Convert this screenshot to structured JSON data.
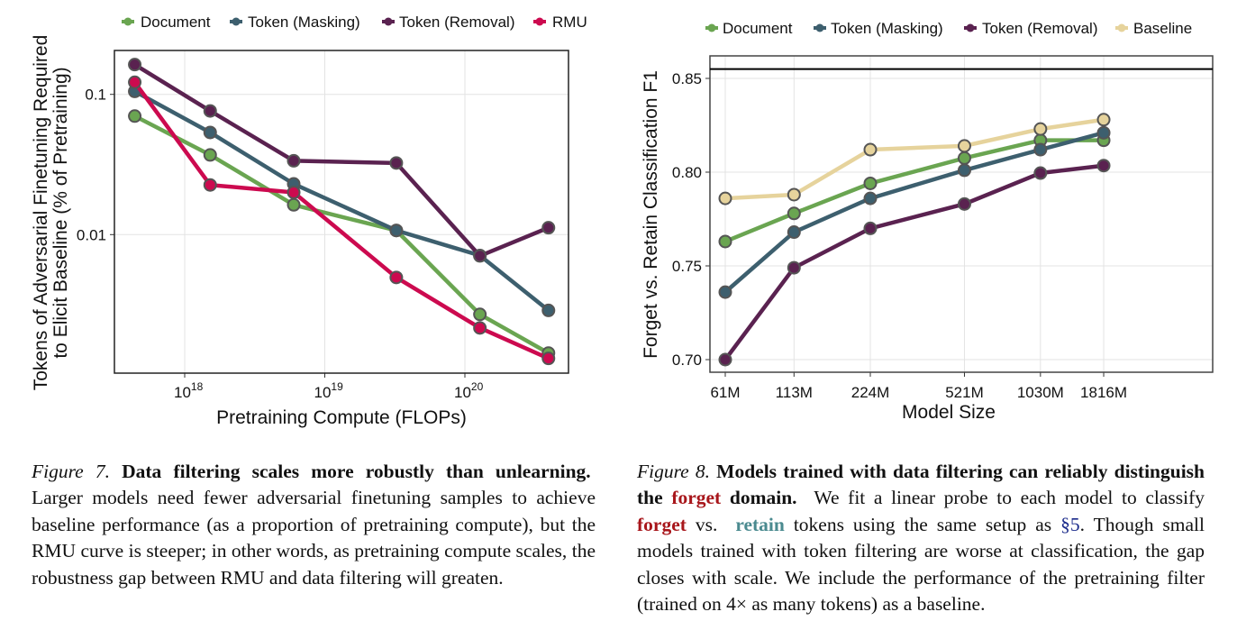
{
  "colors": {
    "document": "#6aa551",
    "token_masking": "#3d5f6e",
    "token_removal": "#5a2250",
    "rmu": "#cc0a4f",
    "baseline": "#e6d39c",
    "marker_edge": "#555555"
  },
  "chart_data": [
    {
      "type": "line",
      "title": "",
      "xlabel": "Pretraining Compute (FLOPs)",
      "ylabel": [
        "Tokens of Adversarial Finetuning Required",
        "to Elicit Baseline (% of Pretraining)"
      ],
      "xscale": "log",
      "yscale": "log",
      "xlim": [
        3.1e+17,
        5.5e+20
      ],
      "ylim": [
        0.00103,
        0.206
      ],
      "xticks": [
        {
          "base": "10",
          "exp": "18",
          "value": 1e+18
        },
        {
          "base": "10",
          "exp": "19",
          "value": 1e+19
        },
        {
          "base": "10",
          "exp": "20",
          "value": 1e+20
        }
      ],
      "yticks": [
        {
          "label": "0.1",
          "value": 0.1
        },
        {
          "label": "0.01",
          "value": 0.01
        }
      ],
      "grid": true,
      "legend_position": "top",
      "x": [
        4.4e+17,
        1.52e+18,
        6e+18,
        3.24e+19,
        1.28e+20,
        3.95e+20
      ],
      "series": [
        {
          "name": "Document",
          "color_key": "document",
          "values": [
            0.07,
            0.037,
            0.0163,
            0.0107,
            0.0027,
            0.00143
          ]
        },
        {
          "name": "Token (Masking)",
          "color_key": "token_masking",
          "values": [
            0.105,
            0.0535,
            0.023,
            0.0107,
            0.0071,
            0.00288
          ]
        },
        {
          "name": "Token (Removal)",
          "color_key": "token_removal",
          "values": [
            0.163,
            0.0762,
            0.0336,
            0.0324,
            0.00705,
            0.0112
          ]
        },
        {
          "name": "RMU",
          "color_key": "rmu",
          "values": [
            0.122,
            0.0226,
            0.02,
            0.00495,
            0.00216,
            0.00131
          ]
        }
      ]
    },
    {
      "type": "line",
      "title": "",
      "xlabel": "Model Size",
      "ylabel": "Forget vs. Retain Classification F1",
      "xscale": "log",
      "ylim": [
        0.694,
        0.866
      ],
      "categories": [
        "61M",
        "113M",
        "224M",
        "521M",
        "1030M",
        "1816M"
      ],
      "x": [
        61,
        113,
        224,
        521,
        1030,
        1816
      ],
      "yticks": [
        {
          "label": "0.70",
          "value": 0.7
        },
        {
          "label": "0.75",
          "value": 0.75
        },
        {
          "label": "0.80",
          "value": 0.8
        },
        {
          "label": "0.85",
          "value": 0.85
        }
      ],
      "grid": true,
      "legend_position": "top",
      "reference_line": 0.855,
      "series": [
        {
          "name": "Document",
          "color_key": "document",
          "values": [
            0.763,
            0.778,
            0.794,
            0.8075,
            0.817,
            0.817
          ]
        },
        {
          "name": "Token (Masking)",
          "color_key": "token_masking",
          "values": [
            0.736,
            0.768,
            0.786,
            0.801,
            0.812,
            0.821
          ]
        },
        {
          "name": "Token (Removal)",
          "color_key": "token_removal",
          "values": [
            0.7,
            0.749,
            0.77,
            0.783,
            0.7995,
            0.8035
          ]
        },
        {
          "name": "Baseline",
          "color_key": "baseline",
          "values": [
            0.786,
            0.788,
            0.812,
            0.814,
            0.823,
            0.828
          ]
        }
      ]
    }
  ],
  "captions": {
    "fig7": {
      "label": "Figure 7.",
      "title": "Data filtering scales more robustly than unlearning.",
      "body": "Larger models need fewer adversarial finetuning samples to achieve baseline performance (as a proportion of pretraining compute), but the RMU curve is steeper; in other words, as pretraining compute scales, the robustness gap between RMU and data filtering will greaten."
    },
    "fig8": {
      "label": "Figure 8.",
      "title_a": "Models trained with data filtering can reliably distinguish the",
      "title_forget": "forget",
      "title_b": "domain.",
      "body_a": "We fit a linear probe to each model to classify",
      "body_forget": "forget",
      "body_vs": "vs.",
      "body_retain": "retain",
      "body_b": "tokens using the same setup as",
      "body_ref": "§5",
      "body_c": ". Though small models trained with token filtering are worse at classification, the gap closes with scale. We include the performance of the pretraining filter (trained on 4× as many tokens) as a baseline."
    }
  }
}
